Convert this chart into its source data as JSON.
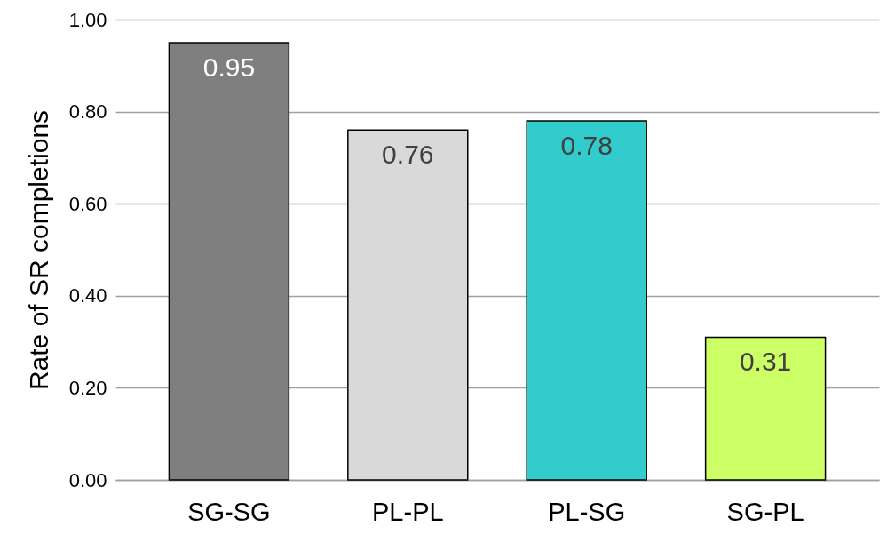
{
  "chart_data": {
    "type": "bar",
    "ylabel": "Rate of SR completions",
    "categories": [
      "SG-SG",
      "PL-PL",
      "PL-SG",
      "SG-PL"
    ],
    "values": [
      0.95,
      0.76,
      0.78,
      0.31
    ],
    "colors": [
      "#7f7f7f",
      "#d9d9d9",
      "#33cccc",
      "#ccff66"
    ],
    "ylim": [
      0,
      1
    ],
    "yticks": [
      {
        "value": 0,
        "label": "0.00"
      },
      {
        "value": 0.2,
        "label": "0.20"
      },
      {
        "value": 0.4,
        "label": "0.40"
      },
      {
        "value": 0.6,
        "label": "0.60"
      },
      {
        "value": 0.8,
        "label": "0.80"
      },
      {
        "value": 1,
        "label": "1.00"
      }
    ],
    "grid": true,
    "data_labels": true
  }
}
